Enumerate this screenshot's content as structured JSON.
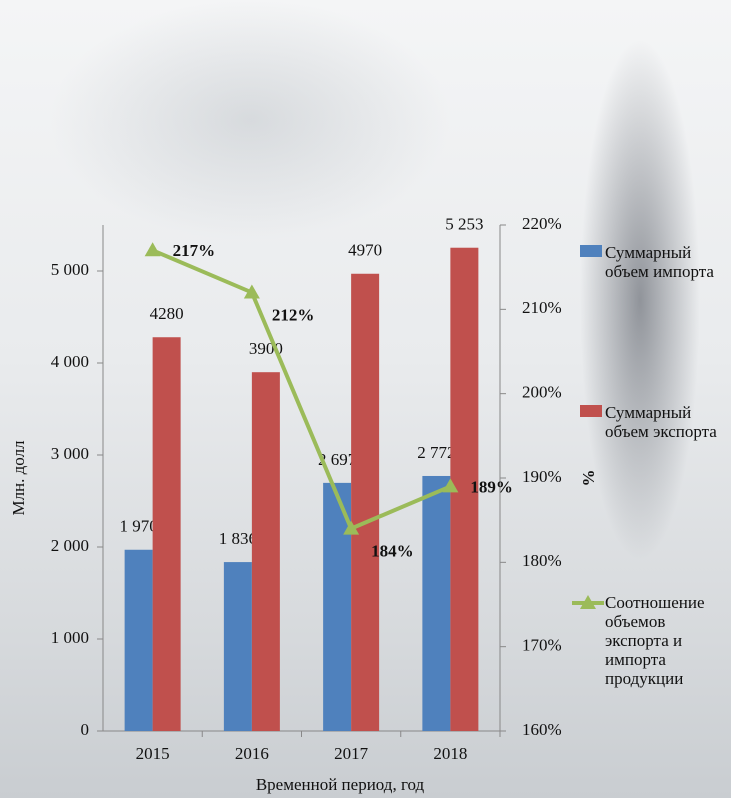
{
  "chart_data": {
    "type": "bar",
    "x_label": "Временной период, год",
    "y_label": "Млн. долл",
    "y2_label": "%",
    "categories": [
      "2015",
      "2016",
      "2017",
      "2018"
    ],
    "series": [
      {
        "name": "Суммарный объем импорта",
        "type": "bar",
        "color": "#4f81bd",
        "values": [
          1970,
          1836,
          2697,
          2772
        ],
        "value_labels": [
          "1 970",
          "1 836",
          "2 697",
          "2 772"
        ]
      },
      {
        "name": "Суммарный объем экспорта",
        "type": "bar",
        "color": "#c0504d",
        "values": [
          4280,
          3900,
          4970,
          5253
        ],
        "value_labels": [
          "4280",
          "3900",
          "4970",
          "5 253"
        ]
      },
      {
        "name": "Соотношение объемов экспорта и импорта продукции",
        "type": "line",
        "axis": "y2",
        "color": "#9bbb59",
        "values": [
          217,
          212,
          184,
          189
        ],
        "value_labels": [
          "217%",
          "212%",
          "184%",
          "189%"
        ]
      }
    ],
    "ylim": [
      0,
      5500
    ],
    "yticks": [
      0,
      {
        "value": 1000,
        "label": "1 000"
      },
      {
        "value": 2000,
        "label": "2 000"
      },
      {
        "value": 3000,
        "label": "3 000"
      },
      {
        "value": 4000,
        "label": "4 000"
      },
      {
        "value": 5000,
        "label": "5 000"
      }
    ],
    "y2lim": [
      160,
      220
    ],
    "y2ticks": [
      {
        "value": 160,
        "label": "160%"
      },
      {
        "value": 170,
        "label": "170%"
      },
      {
        "value": 180,
        "label": "180%"
      },
      {
        "value": 190,
        "label": "190%"
      },
      {
        "value": 200,
        "label": "200%"
      },
      {
        "value": 210,
        "label": "210%"
      },
      {
        "value": 220,
        "label": "220%"
      }
    ],
    "legend": "right"
  }
}
